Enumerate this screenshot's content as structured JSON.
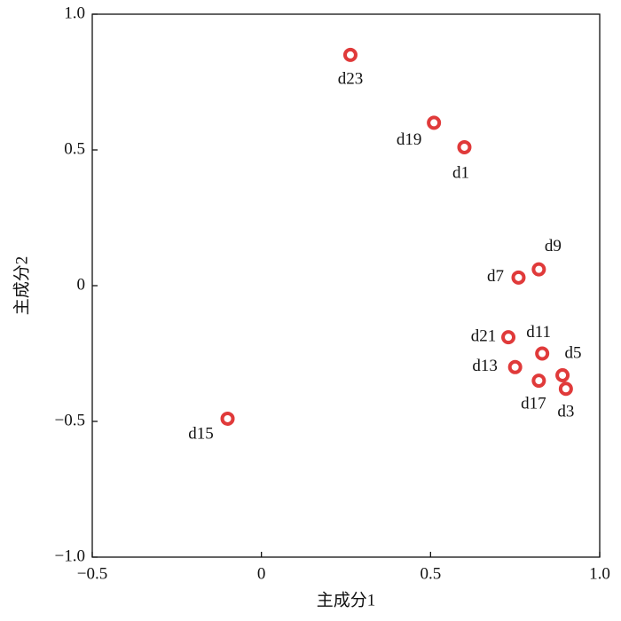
{
  "chart_data": {
    "type": "scatter",
    "xlabel": "主成分1",
    "ylabel": "主成分2",
    "series": [
      {
        "color": "#e03a3a",
        "labels": [
          "d1",
          "d3",
          "d5",
          "d7",
          "d9",
          "d11",
          "d13",
          "d15",
          "d17",
          "d19",
          "d21",
          "d23"
        ],
        "x": [
          0.6,
          0.9,
          0.89,
          0.76,
          0.82,
          0.83,
          0.75,
          -0.1,
          0.82,
          0.51,
          0.73,
          0.263
        ],
        "values": [
          0.51,
          -0.38,
          -0.33,
          0.03,
          0.06,
          -0.25,
          -0.3,
          -0.49,
          -0.35,
          0.6,
          -0.19,
          0.85
        ]
      }
    ],
    "xlim": [
      -0.5,
      1
    ],
    "ylim": [
      -1,
      1
    ],
    "xticks": [
      {
        "value": -0.5,
        "label": "−0.5"
      },
      0,
      0.5,
      {
        "value": 1,
        "label": "1.0"
      }
    ],
    "yticks": [
      {
        "value": -1,
        "label": "−1.0"
      },
      {
        "value": -0.5,
        "label": "−0.5"
      },
      0,
      0.5,
      {
        "value": 1,
        "label": "1.0"
      }
    ]
  }
}
